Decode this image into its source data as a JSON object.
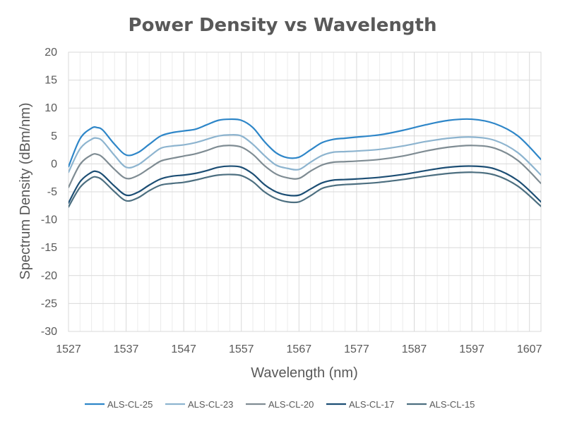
{
  "chart_data": {
    "type": "line",
    "title": "Power Density vs Wavelength",
    "xlabel": "Wavelength (nm)",
    "ylabel": "Spectrum Density (dBm/nm)",
    "xlim": [
      1527,
      1609
    ],
    "ylim": [
      -30,
      20
    ],
    "xticks": [
      1527,
      1537,
      1547,
      1557,
      1567,
      1577,
      1587,
      1597,
      1607
    ],
    "yticks": [
      20,
      15,
      10,
      5,
      0,
      -5,
      -10,
      -15,
      -20,
      -25,
      -30
    ],
    "grid": true,
    "legend_position": "bottom",
    "x": [
      1527,
      1529,
      1531,
      1532,
      1533,
      1535,
      1537,
      1539,
      1541,
      1543,
      1545,
      1547,
      1549,
      1551,
      1553,
      1555,
      1557,
      1559,
      1561,
      1563,
      1565,
      1567,
      1569,
      1571,
      1573,
      1575,
      1577,
      1581,
      1585,
      1589,
      1593,
      1597,
      1601,
      1605,
      1609
    ],
    "series": [
      {
        "name": "ALS-CL-25",
        "color": "#2e86c8",
        "values": [
          -0.5,
          4.5,
          6.4,
          6.5,
          6.0,
          3.5,
          1.6,
          2.0,
          3.5,
          5.0,
          5.6,
          5.9,
          6.2,
          7.0,
          7.8,
          8.0,
          7.8,
          6.5,
          4.0,
          2.0,
          1.1,
          1.2,
          2.5,
          3.8,
          4.4,
          4.6,
          4.8,
          5.2,
          6.0,
          7.0,
          7.8,
          8.0,
          7.2,
          5.0,
          0.8
        ]
      },
      {
        "name": "ALS-CL-23",
        "color": "#8db4cf",
        "values": [
          -1.5,
          2.7,
          4.4,
          4.6,
          4.0,
          1.5,
          -0.6,
          -0.2,
          1.3,
          2.8,
          3.2,
          3.4,
          3.8,
          4.4,
          5.0,
          5.2,
          5.0,
          3.5,
          1.5,
          -0.2,
          -0.8,
          -1.0,
          0.3,
          1.5,
          2.1,
          2.2,
          2.3,
          2.6,
          3.2,
          4.0,
          4.6,
          4.8,
          4.2,
          2.0,
          -2.0
        ]
      },
      {
        "name": "ALS-CL-20",
        "color": "#7f8c93",
        "values": [
          -4.2,
          -0.1,
          1.6,
          1.7,
          1.1,
          -1.0,
          -2.6,
          -2.1,
          -0.8,
          0.5,
          1.0,
          1.4,
          1.8,
          2.4,
          3.1,
          3.3,
          3.0,
          1.7,
          -0.3,
          -1.8,
          -2.5,
          -2.6,
          -1.3,
          -0.2,
          0.3,
          0.4,
          0.5,
          0.8,
          1.4,
          2.3,
          3.0,
          3.3,
          2.8,
          0.6,
          -3.5
        ]
      },
      {
        "name": "ALS-CL-17",
        "color": "#1c4e74",
        "values": [
          -7.0,
          -3.2,
          -1.5,
          -1.4,
          -2.0,
          -4.0,
          -5.6,
          -5.1,
          -3.8,
          -2.7,
          -2.2,
          -2.0,
          -1.7,
          -1.2,
          -0.6,
          -0.4,
          -0.6,
          -1.8,
          -3.7,
          -5.0,
          -5.6,
          -5.6,
          -4.5,
          -3.4,
          -2.9,
          -2.8,
          -2.7,
          -2.4,
          -1.9,
          -1.2,
          -0.6,
          -0.4,
          -0.9,
          -3.0,
          -6.8
        ]
      },
      {
        "name": "ALS-CL-15",
        "color": "#4d6f80",
        "values": [
          -7.7,
          -4.2,
          -2.5,
          -2.4,
          -3.0,
          -5.0,
          -6.6,
          -6.1,
          -4.8,
          -3.8,
          -3.5,
          -3.3,
          -2.9,
          -2.4,
          -2.0,
          -1.9,
          -2.1,
          -3.2,
          -5.0,
          -6.2,
          -6.8,
          -6.8,
          -5.7,
          -4.4,
          -3.9,
          -3.7,
          -3.6,
          -3.3,
          -2.8,
          -2.2,
          -1.7,
          -1.5,
          -2.0,
          -4.0,
          -7.6
        ]
      }
    ]
  }
}
